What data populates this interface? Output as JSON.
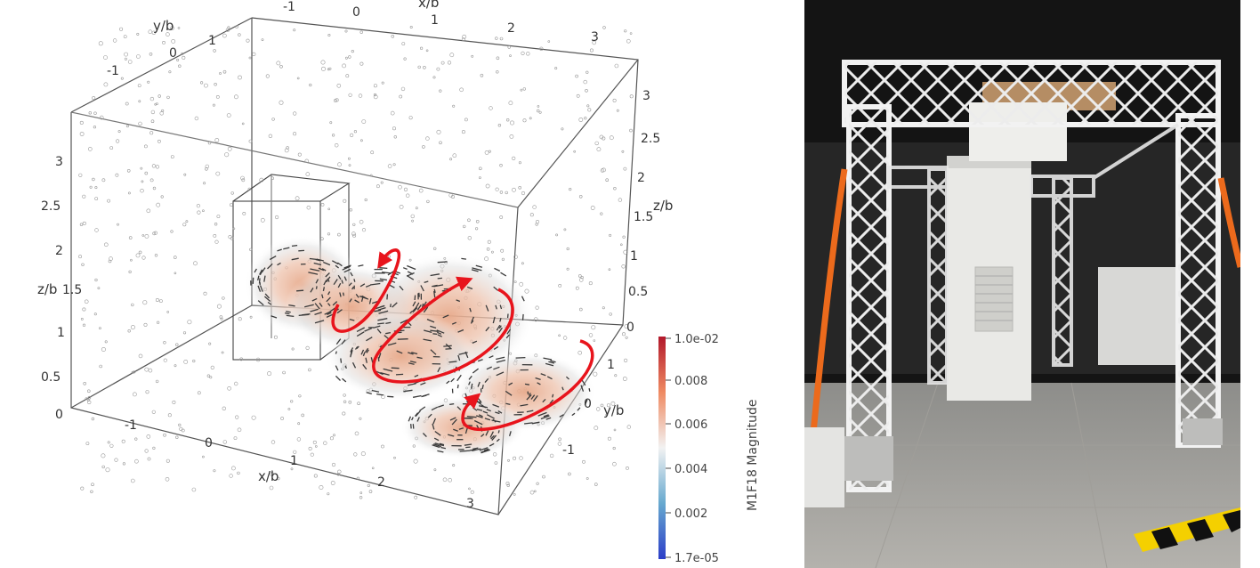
{
  "figure": {
    "axes": {
      "x_label": "x/b",
      "y_label": "y/b",
      "z_label": "z/b",
      "x_ticks": [
        "-1",
        "0",
        "1",
        "2",
        "3"
      ],
      "y_ticks": [
        "-1",
        "0",
        "1"
      ],
      "z_ticks": [
        "0",
        "0.5",
        "1",
        "1.5",
        "2",
        "2.5",
        "3"
      ]
    },
    "colorbar": {
      "title": "M1F18 Magnitude",
      "ticks": [
        "1.0e-02",
        "0.008",
        "0.006",
        "0.004",
        "0.002",
        "1.7e-05"
      ],
      "colors": [
        "#b2182b",
        "#ef8a62",
        "#f7f7f7",
        "#67a9cf",
        "#2c3ec8"
      ]
    },
    "vortex_arrow_color": "#e8141c"
  },
  "photo": {
    "subject": "truss-gantry-fan-array"
  }
}
